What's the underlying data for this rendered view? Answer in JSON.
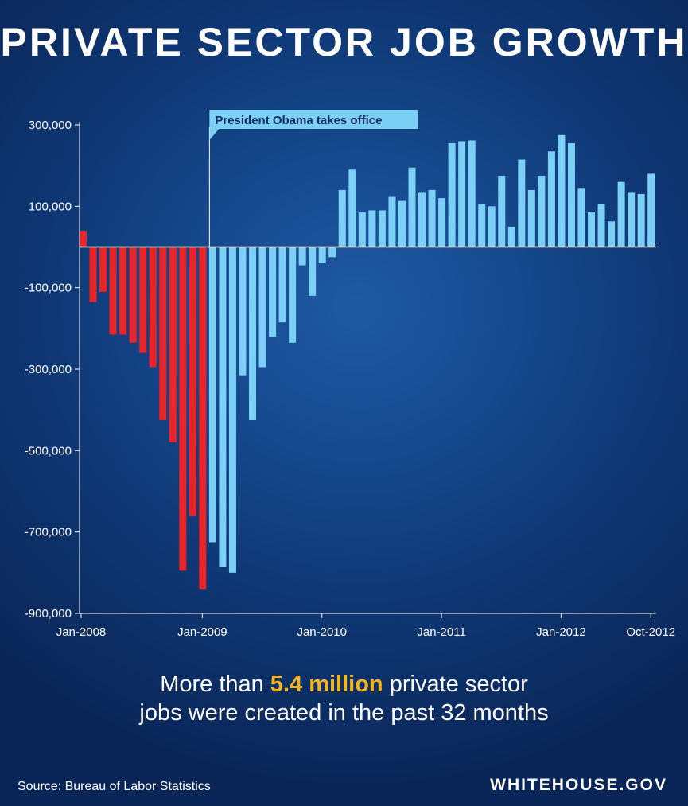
{
  "colors": {
    "before": "#e9252a",
    "after": "#7ccff5",
    "annotation_bg": "#7ccff5",
    "annotation_text": "#0d2a5c",
    "highlight": "#f6b51e",
    "axis": "#ffffff"
  },
  "title": "PRIVATE SECTOR JOB GROWTH",
  "headline": {
    "pre": "More than ",
    "highlight": "5.4 million",
    "post": " private sector",
    "line2": "jobs were created in the past 32 months"
  },
  "source": "Source: Bureau of Labor Statistics",
  "site": "WHITEHOUSE.GOV",
  "chart_data": {
    "type": "bar",
    "title": "PRIVATE SECTOR JOB GROWTH",
    "xlabel": "",
    "ylabel": "",
    "ylim": [
      -900000,
      300000
    ],
    "yticks": [
      300000,
      100000,
      -100000,
      -300000,
      -500000,
      -700000,
      -900000
    ],
    "ytick_labels": [
      "300,000",
      "100,000",
      "-100,000",
      "-300,000",
      "-500,000",
      "-700,000",
      "-900,000"
    ],
    "xtick_labels": [
      {
        "label": "Jan-2008",
        "index": 0
      },
      {
        "label": "Jan-2009",
        "index": 12
      },
      {
        "label": "Jan-2010",
        "index": 24
      },
      {
        "label": "Jan-2011",
        "index": 36
      },
      {
        "label": "Jan-2012",
        "index": 48
      },
      {
        "label": "Oct-2012",
        "index": 57
      }
    ],
    "grid": false,
    "annotation": {
      "text": "President Obama takes office",
      "at_index": 12
    },
    "series": [
      {
        "name": "",
        "color_before_index": 13,
        "values": [
          40000,
          -135000,
          -110000,
          -215000,
          -215000,
          -235000,
          -260000,
          -295000,
          -425000,
          -480000,
          -795000,
          -660000,
          -840000,
          -725000,
          -785000,
          -800000,
          -315000,
          -425000,
          -295000,
          -220000,
          -185000,
          -235000,
          -45000,
          -120000,
          -40000,
          -25000,
          140000,
          190000,
          85000,
          90000,
          90000,
          125000,
          115000,
          195000,
          135000,
          140000,
          120000,
          255000,
          260000,
          262000,
          105000,
          100000,
          175000,
          50000,
          215000,
          140000,
          175000,
          235000,
          275000,
          255000,
          145000,
          85000,
          105000,
          63000,
          160000,
          135000,
          130000,
          180000
        ]
      }
    ]
  }
}
